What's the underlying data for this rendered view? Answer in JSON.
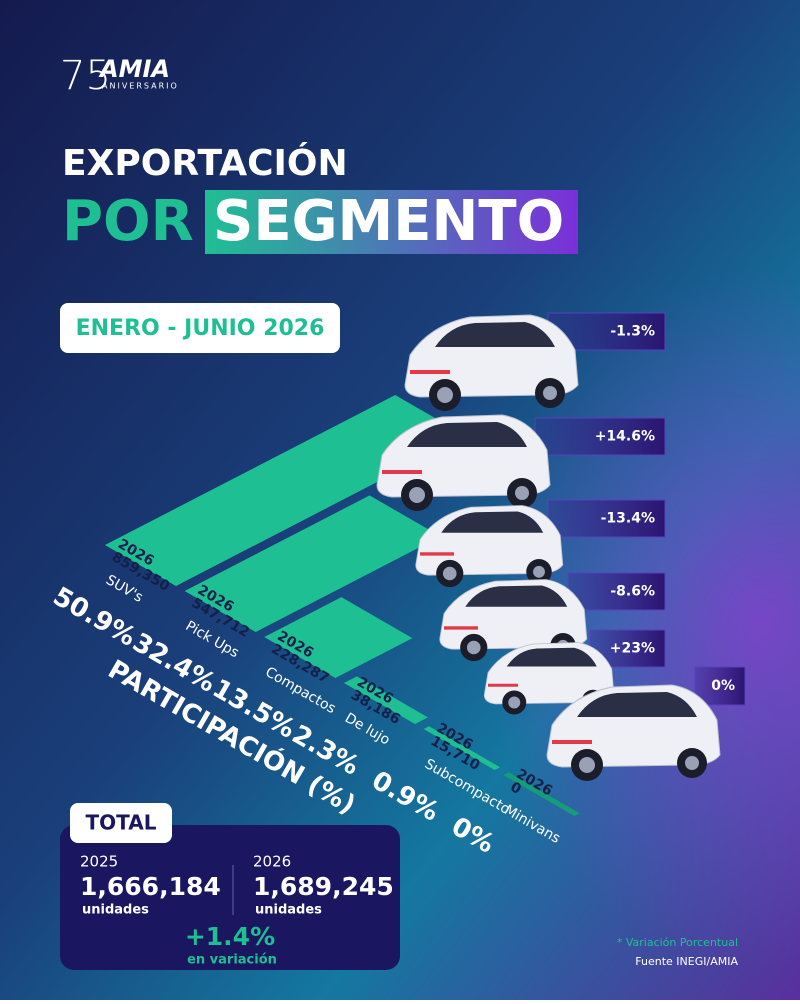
{
  "logo": {
    "number": "75",
    "name": "AMIA",
    "sub": "ANIVERSARIO"
  },
  "title": {
    "line1": "EXPORTACIÓN",
    "line2a": "POR",
    "line2b": "SEGMENTO"
  },
  "period": "ENERO - JUNIO 2026",
  "chart_data": {
    "type": "bar",
    "categories": [
      "SUV's",
      "Pick Ups",
      "Compactos",
      "De lujo",
      "Subcompacto",
      "Minivans"
    ],
    "series": [
      {
        "name": "2026",
        "color": "#1fbf94",
        "values": [
          859350,
          547712,
          228287,
          38186,
          15710,
          0
        ],
        "value_labels": [
          "859,350",
          "547,712",
          "228,287",
          "38,186",
          "15,710",
          "0"
        ]
      }
    ],
    "share_title": "PARTICIPACIÓN (%)",
    "share": [
      50.9,
      32.4,
      13.5,
      2.3,
      0.9,
      0
    ],
    "share_labels": [
      "50.9%",
      "32.4%",
      "13.5%",
      "2.3%",
      "0.9%",
      "0%"
    ],
    "variation": [
      -1.3,
      14.6,
      -13.4,
      -8.6,
      23,
      0
    ],
    "variation_labels": [
      "-1.3%",
      "+14.6%",
      "-13.4%",
      "-8.6%",
      "+23%",
      "0%"
    ]
  },
  "total": {
    "label": "TOTAL",
    "years": [
      {
        "year": "2025",
        "value": "1,666,184",
        "unit": "unidades"
      },
      {
        "year": "2026",
        "value": "1,689,245",
        "unit": "unidades"
      }
    ],
    "change": "+1.4%",
    "change_label": "en variación"
  },
  "footnote": {
    "note": "* Variación Porcentual",
    "source": "Fuente INEGI/AMIA"
  }
}
